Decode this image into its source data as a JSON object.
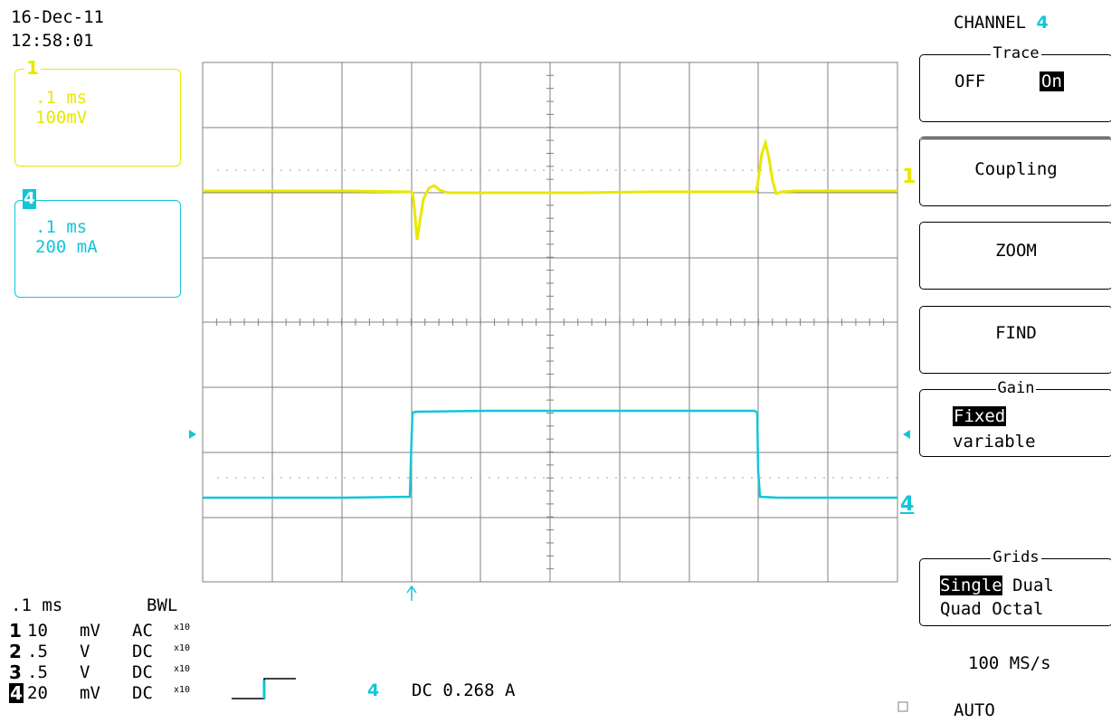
{
  "header": {
    "date": "16-Dec-11",
    "time": "12:58:01",
    "channel_label": "CHANNEL",
    "channel_number": "4"
  },
  "traces": {
    "ch1": {
      "label": "1",
      "timebase": ".1 ms",
      "scale": "100mV",
      "color": "#e8e800"
    },
    "ch4": {
      "label": "4",
      "timebase": ".1 ms",
      "scale": "200 mA",
      "color": "#11c6d8"
    }
  },
  "menu": {
    "trace": {
      "title": "Trace",
      "off": "OFF",
      "on": "On"
    },
    "coupling": "Coupling",
    "zoom": "ZOOM",
    "find": "FIND",
    "gain": {
      "title": "Gain",
      "fixed": "Fixed",
      "variable": "variable"
    },
    "grids": {
      "title": "Grids",
      "single": "Single",
      "dual": "Dual",
      "quad": "Quad",
      "octal": "Octal"
    }
  },
  "status": {
    "timebase": ".1 ms",
    "bwl": "BWL",
    "channels": [
      {
        "num": "1",
        "volts": "10",
        "unit": "mV",
        "coupling": "AC",
        "probe": "x10"
      },
      {
        "num": "2",
        "volts": ".5",
        "unit": "V",
        "coupling": "DC",
        "probe": "x10"
      },
      {
        "num": "3",
        "volts": ".5",
        "unit": "V",
        "coupling": "DC",
        "probe": "x10"
      },
      {
        "num": "4",
        "volts": "20",
        "unit": "mV",
        "coupling": "DC",
        "probe": "x10"
      }
    ],
    "trigger_channel": "4",
    "trigger_readout": "DC 0.268 A",
    "sample_rate": "100 MS/s",
    "trigger_mode": "AUTO"
  },
  "colors": {
    "ch1": "#e8e800",
    "ch4": "#11c6d8",
    "grid": "#808080"
  }
}
